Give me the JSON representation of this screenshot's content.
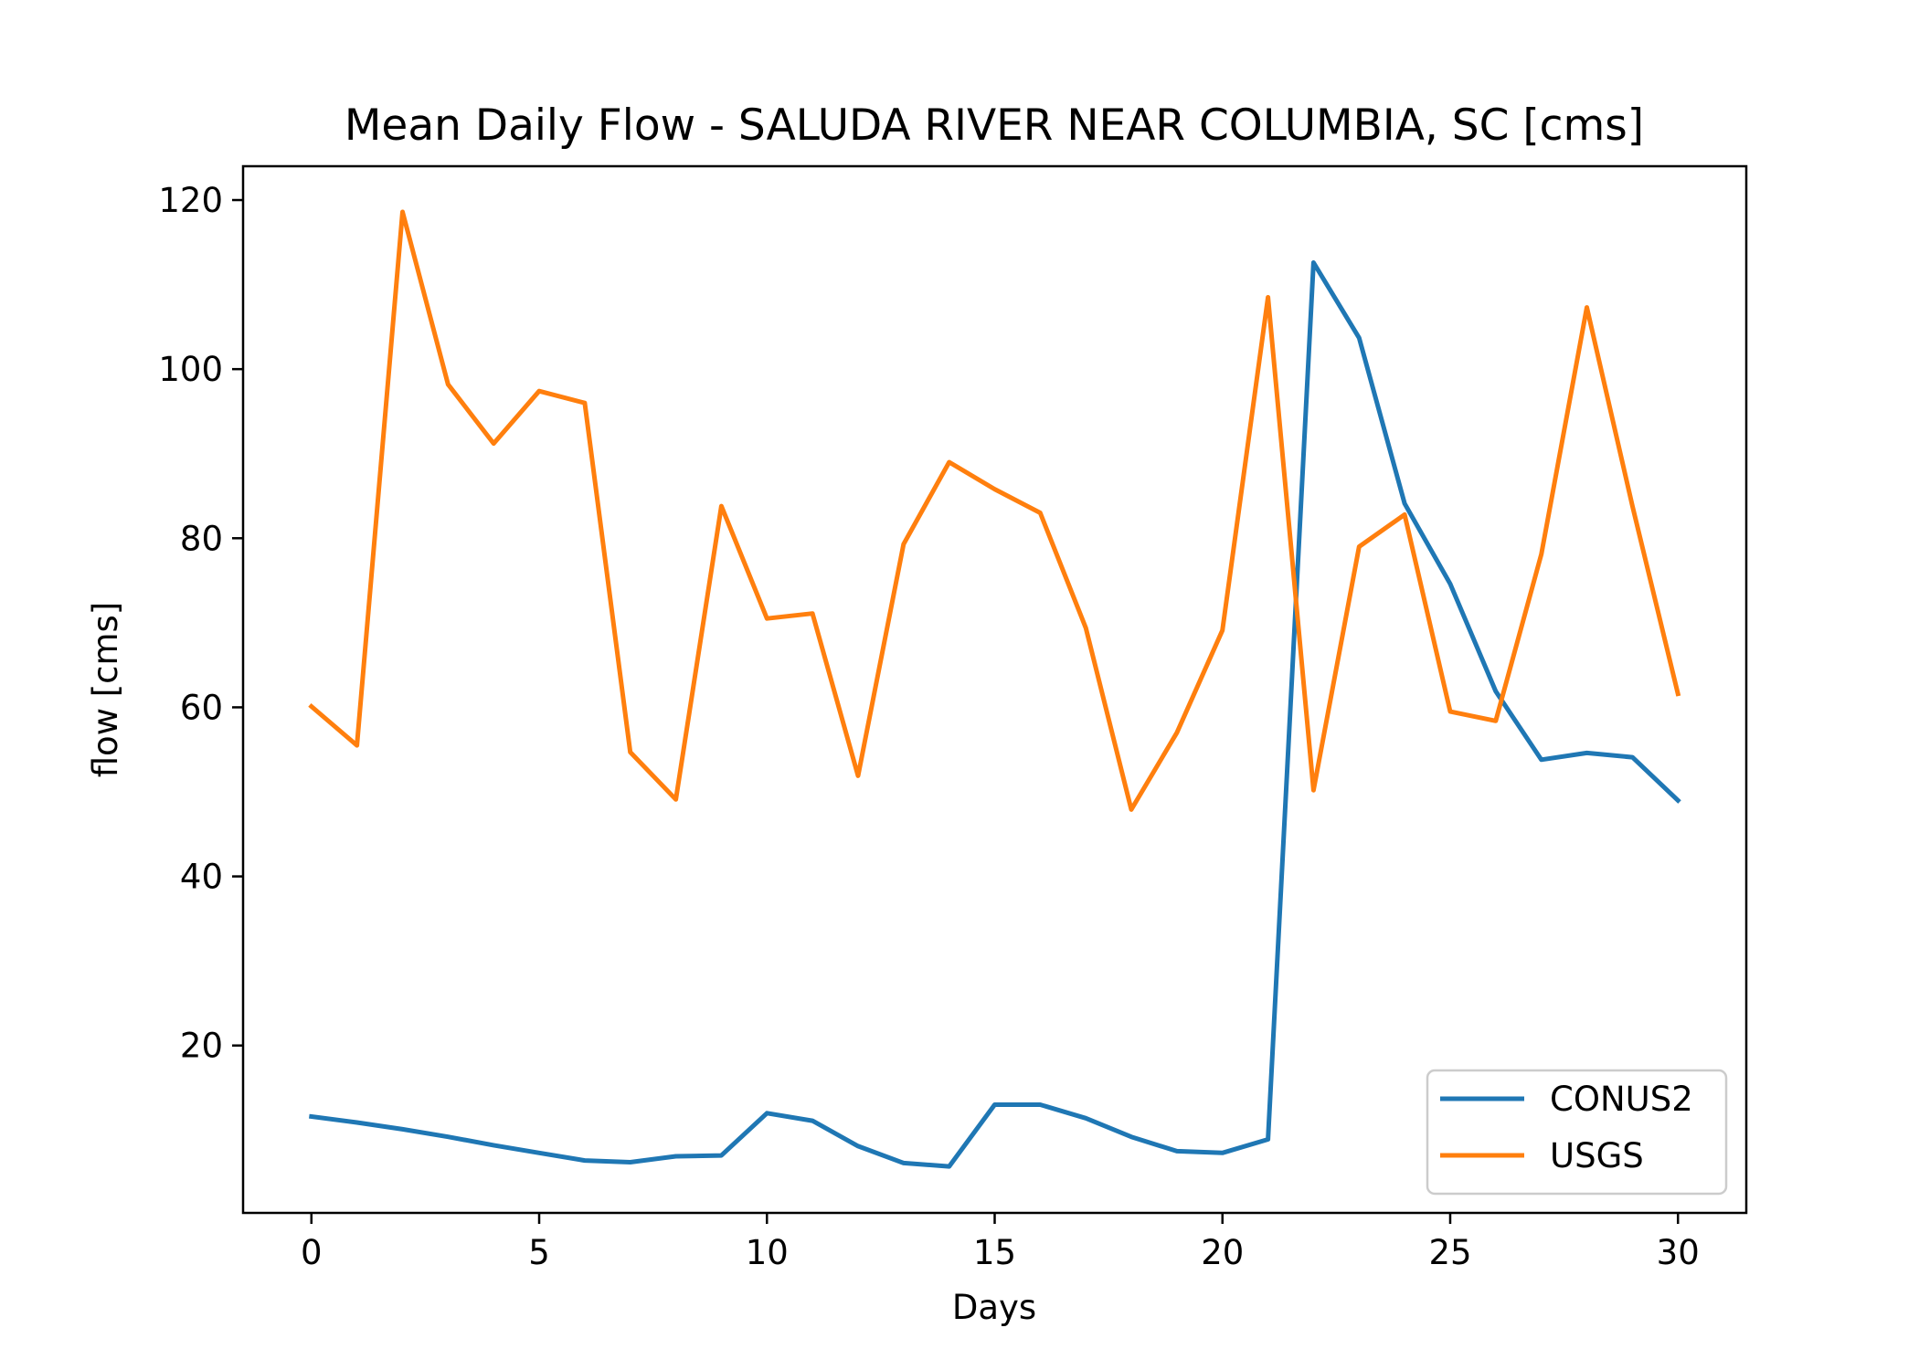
{
  "chart_data": {
    "type": "line",
    "title": "Mean Daily Flow - SALUDA RIVER NEAR COLUMBIA, SC [cms]",
    "xlabel": "Days",
    "ylabel": "flow [cms]",
    "xlim": [
      -1.5,
      31.5
    ],
    "ylim": [
      0.2,
      124.0
    ],
    "xticks": [
      0,
      5,
      10,
      15,
      20,
      25,
      30
    ],
    "yticks": [
      20,
      40,
      60,
      80,
      100,
      120
    ],
    "grid": false,
    "legend_position": "lower-right",
    "x": [
      0,
      1,
      2,
      3,
      4,
      5,
      6,
      7,
      8,
      9,
      10,
      11,
      12,
      13,
      14,
      15,
      16,
      17,
      18,
      19,
      20,
      21,
      22,
      23,
      24,
      25,
      26,
      27,
      28,
      29,
      30
    ],
    "series": [
      {
        "name": "CONUS2",
        "color": "#1f77b4",
        "values": [
          11.6,
          10.9,
          10.1,
          9.2,
          8.2,
          7.3,
          6.4,
          6.2,
          6.9,
          7.0,
          12.0,
          11.1,
          8.1,
          6.1,
          5.7,
          13.0,
          13.0,
          11.4,
          9.2,
          7.5,
          7.3,
          8.9,
          112.6,
          103.7,
          84.1,
          74.6,
          61.9,
          53.8,
          54.6,
          54.1,
          49.0
        ]
      },
      {
        "name": "USGS",
        "color": "#ff7f0e",
        "values": [
          60.1,
          55.5,
          118.6,
          98.2,
          91.2,
          97.4,
          96.0,
          54.7,
          49.1,
          83.8,
          70.5,
          71.1,
          51.9,
          79.3,
          89.0,
          85.8,
          83.0,
          69.4,
          47.9,
          57.0,
          69.1,
          108.5,
          50.2,
          79.0,
          82.8,
          59.5,
          58.4,
          78.1,
          107.3,
          83.8,
          61.6
        ]
      }
    ]
  }
}
